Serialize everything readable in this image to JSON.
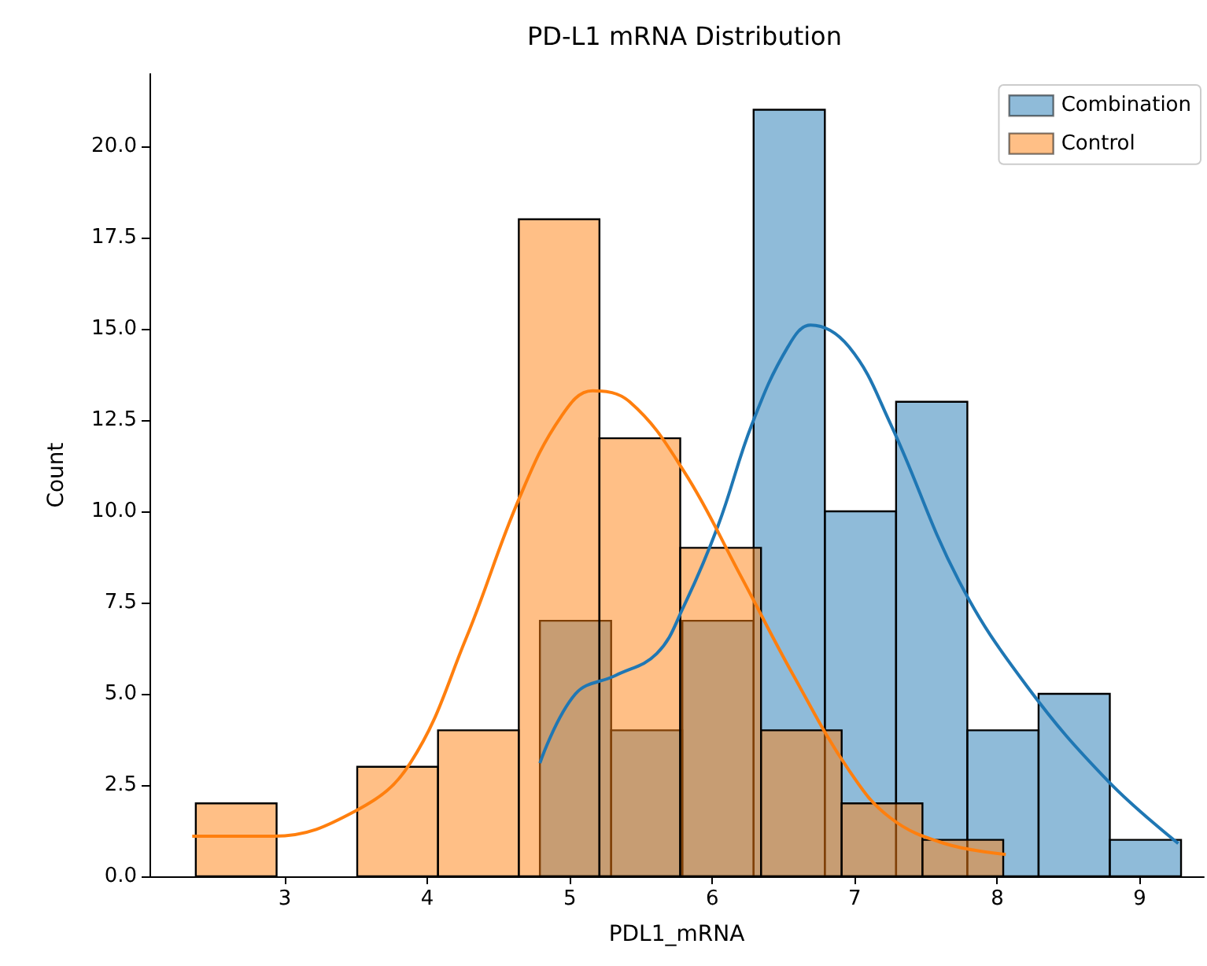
{
  "chart_data": {
    "type": "histogram",
    "title": "PD-L1 mRNA Distribution",
    "xlabel": "PDL1_mRNA",
    "ylabel": "Count",
    "legend": "top right",
    "grid": false,
    "marker": "none",
    "line_style": "solid",
    "xlim": [
      2.05,
      9.45
    ],
    "xticks": [
      3,
      4,
      5,
      6,
      7,
      8,
      9
    ],
    "ylim": [
      0,
      21.98
    ],
    "yticks": [
      {
        "value": 0,
        "label": "0.0"
      },
      {
        "value": 2.5,
        "label": "2.5"
      },
      {
        "value": 5,
        "label": "5.0"
      },
      {
        "value": 7.5,
        "label": "7.5"
      },
      {
        "value": 10,
        "label": "10.0"
      },
      {
        "value": 12.5,
        "label": "12.5"
      },
      {
        "value": 15,
        "label": "15.0"
      },
      {
        "value": 17.5,
        "label": "17.5"
      },
      {
        "value": 20,
        "label": "20.0"
      }
    ],
    "series": [
      {
        "name": "Combination",
        "color": "#1f77b4",
        "bins": [
          4.79,
          5.29,
          5.79,
          6.29,
          6.79,
          7.29,
          7.79,
          8.29,
          8.79,
          9.29
        ],
        "values": [
          7,
          4,
          7,
          21,
          10,
          13,
          4,
          5,
          1
        ]
      },
      {
        "name": "Control",
        "color": "#ff7f0e",
        "bins": [
          2.375,
          2.942,
          3.508,
          4.075,
          4.642,
          5.208,
          5.775,
          6.342,
          6.908,
          7.475,
          8.042
        ],
        "values": [
          2,
          0,
          3,
          4,
          18,
          12,
          9,
          4,
          2,
          1
        ]
      },
      {
        "type": "line",
        "color": "#1f77b4",
        "x": [
          4.79,
          5.04,
          5.32,
          5.61,
          5.8,
          6.04,
          6.28,
          6.53,
          6.69,
          6.96,
          7.25,
          7.73,
          8.21,
          8.78,
          9.27
        ],
        "values": [
          3.1,
          5.0,
          5.5,
          6.1,
          7.4,
          9.6,
          12.4,
          14.5,
          15.1,
          14.5,
          12.4,
          8.1,
          5.2,
          2.6,
          0.9
        ]
      },
      {
        "type": "line",
        "color": "#ff7f0e",
        "x": [
          2.35,
          2.92,
          3.5,
          3.88,
          4.27,
          4.65,
          4.94,
          5.16,
          5.42,
          5.8,
          6.19,
          6.57,
          6.96,
          7.25,
          7.63,
          8.06
        ],
        "values": [
          1.1,
          1.1,
          1.8,
          3.1,
          6.5,
          10.4,
          12.6,
          13.3,
          13.0,
          11.1,
          8.3,
          5.5,
          2.9,
          1.6,
          0.9,
          0.6
        ]
      }
    ]
  }
}
